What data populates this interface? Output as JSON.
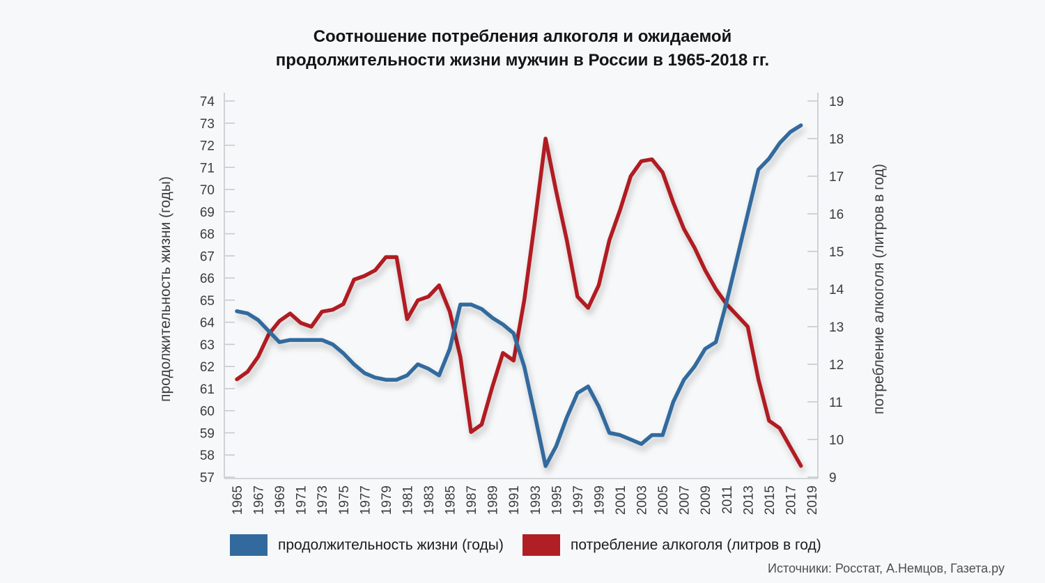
{
  "page": {
    "title_line1": "Соотношение потребления алкоголя и ожидаемой",
    "title_line2": "продолжительности жизни мужчин в России в 1965-2018 гг.",
    "source": "Источники: Росстат, А.Немцов, Газета.ру"
  },
  "legend": {
    "items": [
      {
        "label": "продолжительность жизни (годы)",
        "color": "#336a9e"
      },
      {
        "label": "потребление алкоголя (литров в год)",
        "color": "#b01f24"
      }
    ]
  },
  "chart_data": {
    "type": "line",
    "title": "Соотношение потребления алкоголя и ожидаемой продолжительности жизни мужчин в России в 1965-2018 гг.",
    "grid": false,
    "legend_position": "bottom",
    "x": [
      1965,
      1966,
      1967,
      1968,
      1969,
      1970,
      1971,
      1972,
      1973,
      1974,
      1975,
      1976,
      1977,
      1978,
      1979,
      1980,
      1981,
      1982,
      1983,
      1984,
      1985,
      1986,
      1987,
      1988,
      1989,
      1990,
      1991,
      1992,
      1993,
      1994,
      1995,
      1996,
      1997,
      1998,
      1999,
      2000,
      2001,
      2002,
      2003,
      2004,
      2005,
      2006,
      2007,
      2008,
      2009,
      2010,
      2011,
      2012,
      2013,
      2014,
      2015,
      2016,
      2017,
      2018
    ],
    "x_tick_labels": [
      1965,
      1967,
      1969,
      1971,
      1973,
      1975,
      1977,
      1979,
      1981,
      1983,
      1985,
      1987,
      1989,
      1991,
      1993,
      1995,
      1997,
      1999,
      2001,
      2003,
      2005,
      2007,
      2009,
      2011,
      2013,
      2015,
      2017,
      2019
    ],
    "left_axis": {
      "label": "продолжительность жизни (годы)",
      "min": 57,
      "max": 74,
      "tick_step": 1,
      "ticks": [
        57,
        58,
        59,
        60,
        61,
        62,
        63,
        64,
        65,
        66,
        67,
        68,
        69,
        70,
        71,
        72,
        73,
        74
      ]
    },
    "right_axis": {
      "label": "потребление алкоголя (литров в год)",
      "min": 9,
      "max": 19,
      "tick_step": 1,
      "ticks": [
        9,
        10,
        11,
        12,
        13,
        14,
        15,
        16,
        17,
        18,
        19
      ]
    },
    "series": [
      {
        "name": "продолжительность жизни (годы)",
        "axis": "left",
        "color": "#336a9e",
        "values": [
          64.5,
          64.4,
          64.1,
          63.6,
          63.1,
          63.2,
          63.2,
          63.2,
          63.2,
          63.0,
          62.6,
          62.1,
          61.7,
          61.5,
          61.4,
          61.4,
          61.6,
          62.1,
          61.9,
          61.6,
          62.8,
          64.8,
          64.8,
          64.6,
          64.2,
          63.9,
          63.5,
          62.0,
          59.8,
          57.5,
          58.4,
          59.7,
          60.8,
          61.1,
          60.2,
          59.0,
          58.9,
          58.7,
          58.5,
          58.9,
          58.9,
          60.4,
          61.4,
          62.0,
          62.8,
          63.1,
          64.9,
          66.9,
          68.9,
          70.9,
          71.4,
          72.1,
          72.6,
          72.9
        ]
      },
      {
        "name": "потребление алкоголя (литров в год)",
        "axis": "right",
        "color": "#b01f24",
        "values": [
          11.6,
          11.8,
          12.2,
          12.8,
          13.15,
          13.35,
          13.1,
          13.0,
          13.4,
          13.45,
          13.6,
          14.25,
          14.35,
          14.5,
          14.85,
          14.85,
          13.2,
          13.7,
          13.8,
          14.1,
          13.4,
          12.2,
          10.2,
          10.4,
          11.4,
          12.3,
          12.1,
          13.7,
          15.8,
          18.0,
          16.6,
          15.3,
          13.8,
          13.5,
          14.1,
          15.3,
          16.1,
          17.0,
          17.4,
          17.45,
          17.1,
          16.3,
          15.6,
          15.1,
          14.5,
          14.0,
          13.6,
          13.3,
          13.0,
          11.6,
          10.5,
          10.3,
          9.8,
          9.3
        ]
      }
    ]
  }
}
